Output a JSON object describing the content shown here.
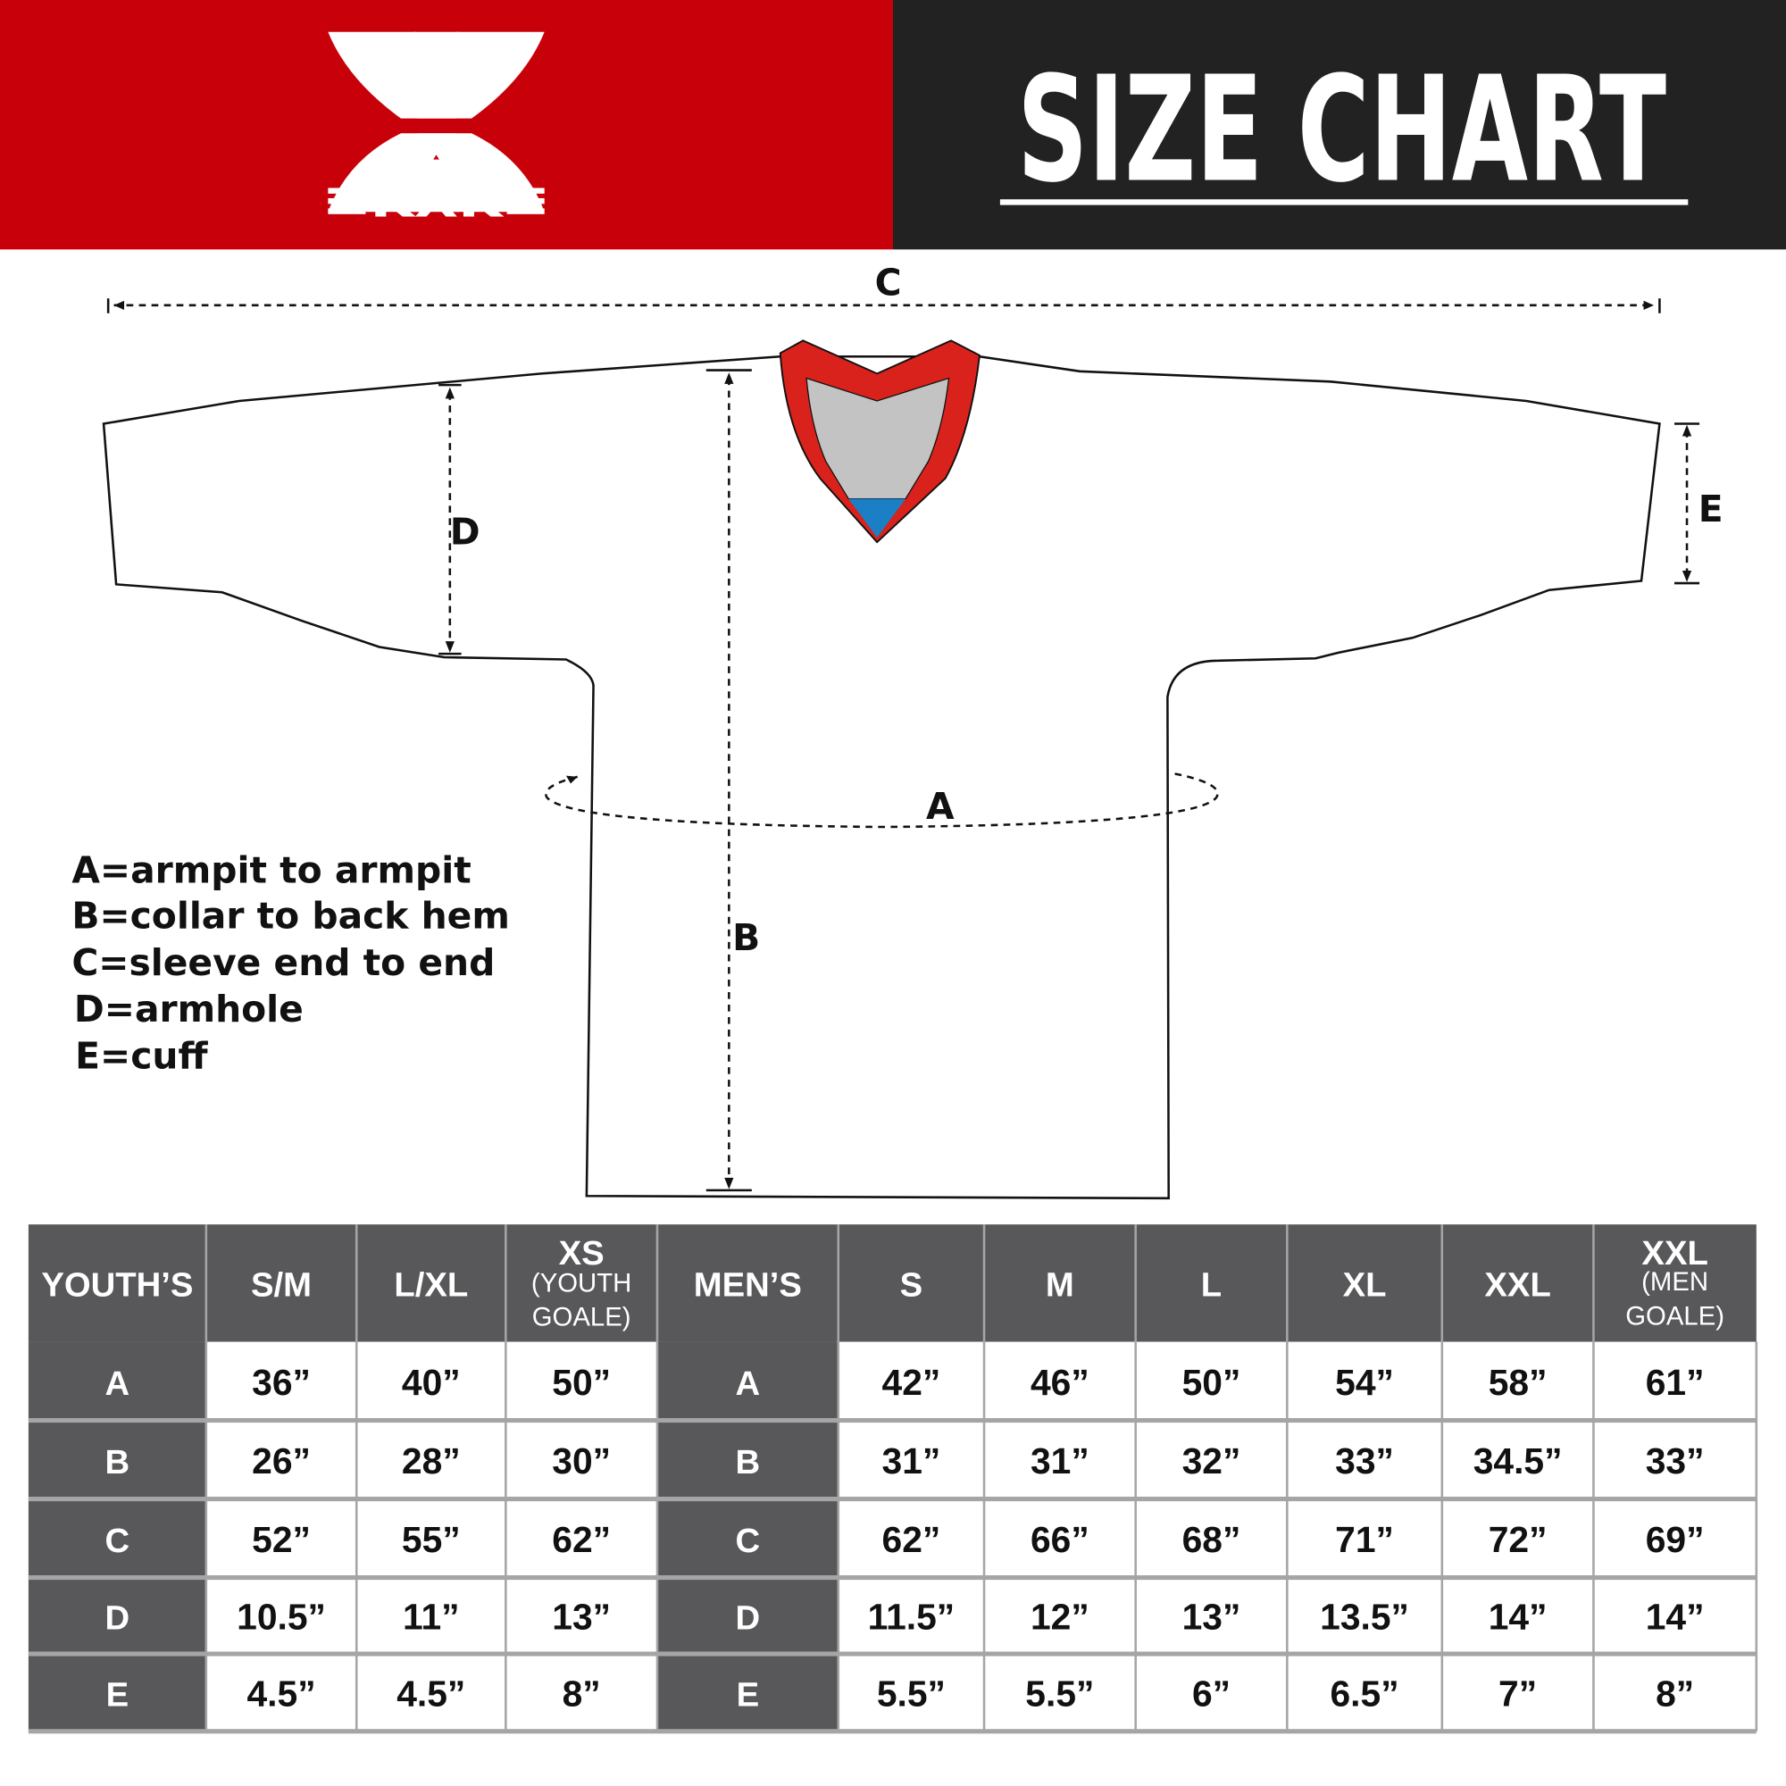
{
  "brand": {
    "logo_text": "KXK",
    "accent_color": "#c8000a",
    "dark_color": "#222222"
  },
  "title": "SIZE CHART",
  "diagram": {
    "labels": {
      "a": "A",
      "b": "B",
      "c": "C",
      "d": "D",
      "e": "E"
    },
    "collar_colors": {
      "band": "#d9221c",
      "inner": "#c3c3c3",
      "tip": "#1a7fc4"
    }
  },
  "legend": [
    "A=armpit to armpit",
    "B=collar to back hem",
    "C=sleeve end to end",
    "D=armhole",
    "E=cuff"
  ],
  "table": {
    "youth_header": "YOUTH’S",
    "youth_sizes": [
      {
        "label": "S/M",
        "sub": ""
      },
      {
        "label": "L/XL",
        "sub": ""
      },
      {
        "label": "XS",
        "sub1": "(YOUTH",
        "sub2": "GOALE)"
      }
    ],
    "men_header": "MEN’S",
    "men_sizes": [
      {
        "label": "S"
      },
      {
        "label": "M"
      },
      {
        "label": "L"
      },
      {
        "label": "XL"
      },
      {
        "label": "XXL"
      },
      {
        "label": "XXL",
        "sub1": "(MEN",
        "sub2": "GOALE)"
      }
    ],
    "rows": [
      {
        "key": "A",
        "youth": [
          "36”",
          "40”",
          "50”"
        ],
        "men": [
          "42”",
          "46”",
          "50”",
          "54”",
          "58”",
          "61”"
        ]
      },
      {
        "key": "B",
        "youth": [
          "26”",
          "28”",
          "30”"
        ],
        "men": [
          "31”",
          "31”",
          "32”",
          "33”",
          "34.5”",
          "33”"
        ]
      },
      {
        "key": "C",
        "youth": [
          "52”",
          "55”",
          "62”"
        ],
        "men": [
          "62”",
          "66”",
          "68”",
          "71”",
          "72”",
          "69”"
        ]
      },
      {
        "key": "D",
        "youth": [
          "10.5”",
          "11”",
          "13”"
        ],
        "men": [
          "11.5”",
          "12”",
          "13”",
          "13.5”",
          "14”",
          "14”"
        ]
      },
      {
        "key": "E",
        "youth": [
          "4.5”",
          "4.5”",
          "8”"
        ],
        "men": [
          "5.5”",
          "5.5”",
          "6”",
          "6.5”",
          "7”",
          "8”"
        ]
      }
    ]
  }
}
